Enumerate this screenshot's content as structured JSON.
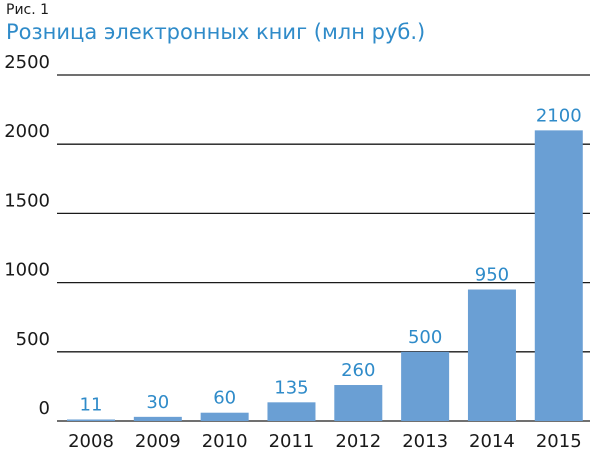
{
  "figure_label": "Рис. 1",
  "chart_data": {
    "type": "bar",
    "title": "Розница электронных книг (млн руб.)",
    "categories": [
      "2008",
      "2009",
      "2010",
      "2011",
      "2012",
      "2013",
      "2014",
      "2015"
    ],
    "values": [
      11,
      30,
      60,
      135,
      260,
      500,
      950,
      2100
    ],
    "data_labels": [
      "11",
      "30",
      "60",
      "135",
      "260",
      "500",
      "950",
      "2100"
    ],
    "y_ticks": [
      0,
      500,
      1000,
      1500,
      2000,
      2500
    ],
    "y_tick_labels": [
      "0",
      "500",
      "1000",
      "1500",
      "2000",
      "2500"
    ],
    "ylim": [
      0,
      2500
    ],
    "grid": true,
    "bar_color": "#6a9fd4",
    "label_color": "#2f8bc9"
  }
}
